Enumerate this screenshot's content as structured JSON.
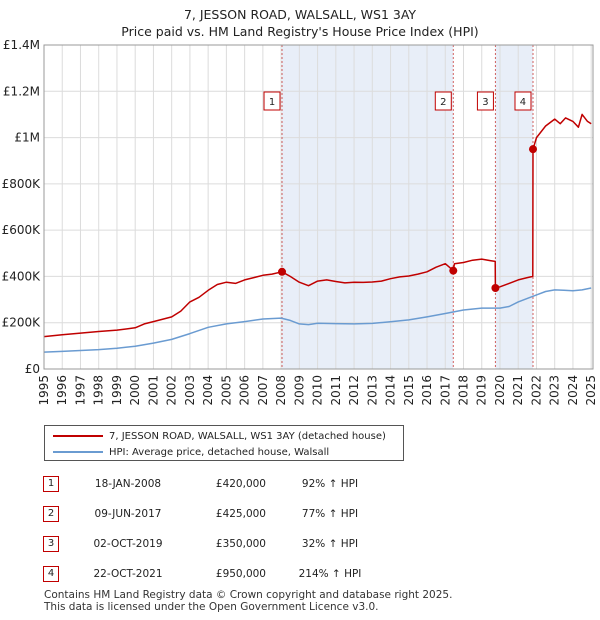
{
  "title_line1": "7, JESSON ROAD, WALSALL, WS1 3AY",
  "title_line2": "Price paid vs. HM Land Registry's House Price Index (HPI)",
  "chart_data": {
    "type": "line",
    "title": "7, JESSON ROAD, WALSALL, WS1 3AY — Price paid vs. HM Land Registry's House Price Index (HPI)",
    "xlabel": "",
    "ylabel": "",
    "xlim": [
      1995,
      2025.1
    ],
    "ylim": [
      0,
      1400000
    ],
    "y_ticks": [
      0,
      200000,
      400000,
      600000,
      800000,
      1000000,
      1200000,
      1400000
    ],
    "y_tick_labels": [
      "£0",
      "£200K",
      "£400K",
      "£600K",
      "£800K",
      "£1M",
      "£1.2M",
      "£1.4M"
    ],
    "x_ticks": [
      1995,
      1996,
      1997,
      1998,
      1999,
      2000,
      2001,
      2002,
      2003,
      2004,
      2005,
      2006,
      2007,
      2008,
      2009,
      2010,
      2011,
      2012,
      2013,
      2014,
      2015,
      2016,
      2017,
      2018,
      2019,
      2020,
      2021,
      2022,
      2023,
      2024,
      2025
    ],
    "x_tick_labels": [
      "1995",
      "1996",
      "1997",
      "1998",
      "1999",
      "2000",
      "2001",
      "2002",
      "2003",
      "2004",
      "2005",
      "2006",
      "2007",
      "2008",
      "2009",
      "2010",
      "2011",
      "2012",
      "2013",
      "2014",
      "2015",
      "2016",
      "2017",
      "2018",
      "2019",
      "2020",
      "2021",
      "2022",
      "2023",
      "2024",
      "2025"
    ],
    "grid": true,
    "shaded_ranges": [
      [
        2008.05,
        2017.44
      ],
      [
        2019.75,
        2021.81
      ]
    ],
    "series": [
      {
        "name": "7, JESSON ROAD, WALSALL, WS1 3AY (detached house)",
        "color": "#c00000",
        "x": [
          1995.0,
          1996.0,
          1997.0,
          1998.0,
          1999.0,
          2000.0,
          2000.5,
          2001.0,
          2002.0,
          2002.5,
          2003.0,
          2003.5,
          2004.0,
          2004.5,
          2005.0,
          2005.5,
          2006.0,
          2006.5,
          2007.0,
          2007.5,
          2008.05,
          2008.5,
          2009.0,
          2009.5,
          2010.0,
          2010.5,
          2011.0,
          2011.5,
          2012.0,
          2012.5,
          2013.0,
          2013.5,
          2014.0,
          2014.5,
          2015.0,
          2015.5,
          2016.0,
          2016.5,
          2017.0,
          2017.44,
          2017.5,
          2018.0,
          2018.5,
          2019.0,
          2019.5,
          2019.74,
          2019.75,
          2020.0,
          2020.5,
          2021.0,
          2021.5,
          2021.8,
          2021.81,
          2022.0,
          2022.5,
          2023.0,
          2023.3,
          2023.6,
          2024.0,
          2024.3,
          2024.5,
          2024.8,
          2025.0
        ],
        "values": [
          140000,
          148000,
          155000,
          162000,
          168000,
          178000,
          195000,
          205000,
          225000,
          250000,
          290000,
          310000,
          340000,
          365000,
          375000,
          370000,
          385000,
          395000,
          405000,
          410000,
          420000,
          400000,
          375000,
          360000,
          380000,
          385000,
          378000,
          372000,
          375000,
          374000,
          376000,
          380000,
          390000,
          398000,
          402000,
          410000,
          420000,
          440000,
          455000,
          425000,
          455000,
          460000,
          470000,
          475000,
          468000,
          465000,
          350000,
          355000,
          370000,
          385000,
          395000,
          400000,
          950000,
          1000000,
          1050000,
          1080000,
          1060000,
          1085000,
          1070000,
          1045000,
          1100000,
          1070000,
          1060000
        ]
      },
      {
        "name": "HPI: Average price, detached house, Walsall",
        "color": "#6a9bd1",
        "x": [
          1995.0,
          1996.0,
          1997.0,
          1998.0,
          1999.0,
          2000.0,
          2001.0,
          2002.0,
          2003.0,
          2004.0,
          2005.0,
          2006.0,
          2007.0,
          2008.0,
          2008.5,
          2009.0,
          2009.5,
          2010.0,
          2011.0,
          2012.0,
          2013.0,
          2014.0,
          2015.0,
          2016.0,
          2017.0,
          2018.0,
          2019.0,
          2020.0,
          2020.5,
          2021.0,
          2021.5,
          2022.0,
          2022.5,
          2023.0,
          2023.5,
          2024.0,
          2024.5,
          2025.0
        ],
        "values": [
          73000,
          76000,
          80000,
          84000,
          90000,
          98000,
          112000,
          128000,
          153000,
          180000,
          195000,
          205000,
          216000,
          220000,
          210000,
          195000,
          192000,
          198000,
          196000,
          195000,
          197000,
          204000,
          212000,
          225000,
          240000,
          255000,
          263000,
          263000,
          270000,
          290000,
          305000,
          320000,
          335000,
          342000,
          340000,
          338000,
          342000,
          350000
        ]
      }
    ],
    "markers": [
      {
        "label": "1",
        "x": 2008.05,
        "y": 420000
      },
      {
        "label": "2",
        "x": 2017.44,
        "y": 425000
      },
      {
        "label": "3",
        "x": 2019.75,
        "y": 350000
      },
      {
        "label": "4",
        "x": 2021.81,
        "y": 950000
      }
    ]
  },
  "legend": {
    "property_label": "7, JESSON ROAD, WALSALL, WS1 3AY (detached house)",
    "hpi_label": "HPI: Average price, detached house, Walsall",
    "property_color": "#c00000",
    "hpi_color": "#6a9bd1"
  },
  "transactions": [
    {
      "num": "1",
      "date": "18-JAN-2008",
      "price": "£420,000",
      "hpi": "92% ↑ HPI"
    },
    {
      "num": "2",
      "date": "09-JUN-2017",
      "price": "£425,000",
      "hpi": "77% ↑ HPI"
    },
    {
      "num": "3",
      "date": "02-OCT-2019",
      "price": "£350,000",
      "hpi": "32% ↑ HPI"
    },
    {
      "num": "4",
      "date": "22-OCT-2021",
      "price": "£950,000",
      "hpi": "214% ↑ HPI"
    }
  ],
  "footer": {
    "line1": "Contains HM Land Registry data © Crown copyright and database right 2025.",
    "line2": "This data is licensed under the Open Government Licence v3.0."
  }
}
